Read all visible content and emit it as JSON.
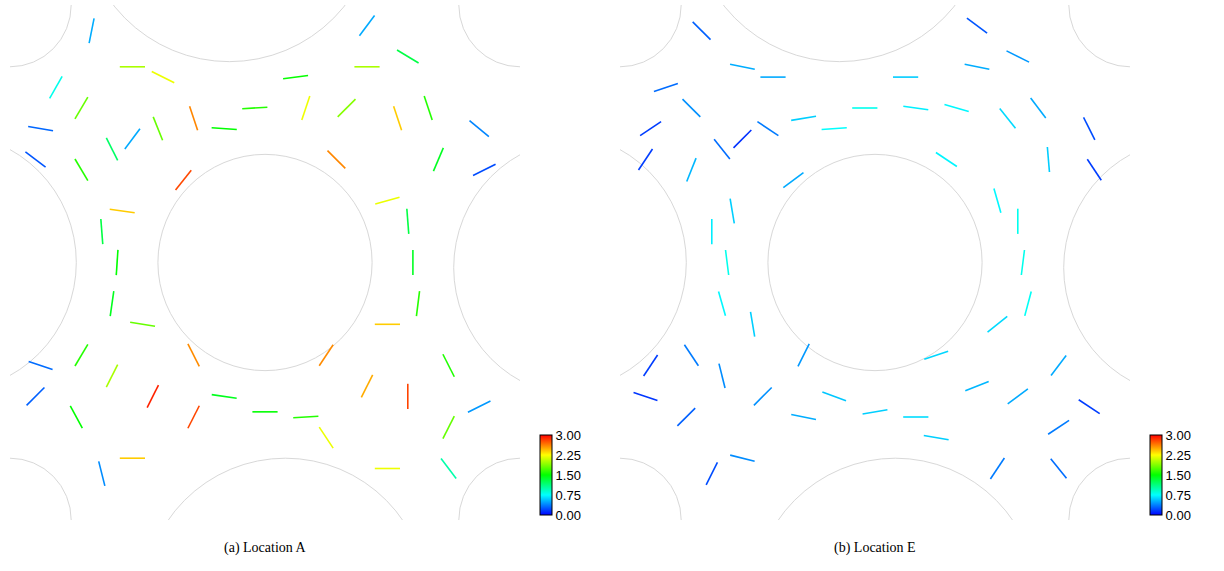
{
  "chart_data": [
    {
      "type": "vector_field",
      "title": "(a) Location A",
      "x": [
        0.24,
        0.14,
        0.14,
        0.22,
        0.34,
        0.36,
        0.3,
        0.24,
        0.2,
        0.29,
        0.06,
        0.05,
        0.09,
        0.7,
        0.82,
        0.84,
        0.74,
        0.64,
        0.58,
        0.76,
        0.66,
        0.92,
        0.93,
        0.78,
        0.56,
        0.48,
        0.42,
        0.21,
        0.2,
        0.18,
        0.79,
        0.8,
        0.78,
        0.5,
        0.42,
        0.58,
        0.24,
        0.36,
        0.36,
        0.26,
        0.14,
        0.13,
        0.28,
        0.2,
        0.06,
        0.05,
        0.18,
        0.74,
        0.86,
        0.86,
        0.74,
        0.62,
        0.62,
        0.78,
        0.7,
        0.92,
        0.86,
        0.16,
        0.7
      ],
      "y": [
        0.88,
        0.8,
        0.68,
        0.6,
        0.66,
        0.78,
        0.86,
        0.74,
        0.72,
        0.76,
        0.76,
        0.7,
        0.84,
        0.88,
        0.8,
        0.7,
        0.62,
        0.7,
        0.8,
        0.78,
        0.8,
        0.76,
        0.68,
        0.9,
        0.86,
        0.8,
        0.76,
        0.5,
        0.42,
        0.56,
        0.5,
        0.42,
        0.58,
        0.21,
        0.24,
        0.2,
        0.12,
        0.2,
        0.32,
        0.38,
        0.32,
        0.2,
        0.24,
        0.28,
        0.3,
        0.24,
        0.09,
        0.1,
        0.18,
        0.3,
        0.38,
        0.32,
        0.16,
        0.24,
        0.26,
        0.22,
        0.1,
        0.95,
        0.96
      ],
      "u": [
        -2.0,
        -0.92,
        0.82,
        2.38,
        1.74,
        -0.83,
        -1.96,
        0.3,
        0.54,
        -0.67,
        -0.3,
        0.2,
        -0.4,
        2.0,
        0.51,
        -0.55,
        -2.11,
        -1.84,
        0.7,
        0.76,
        1.34,
        0.3,
        0.2,
        1.11,
        1.5,
        1.6,
        1.5,
        0.1,
        0.2,
        -0.1,
        0.0,
        -0.2,
        0.1,
        -1.5,
        -1.4,
        -1.6,
        -2.4,
        -1.26,
        1.17,
        1.78,
        0.82,
        -0.72,
        -1.3,
        0.9,
        -0.3,
        0.2,
        0.1,
        2.2,
        0.81,
        -0.72,
        -2.4,
        -1.43,
        1.21,
        0.0,
        -1.12,
        0.4,
        0.6,
        0.1,
        0.3
      ],
      "v": [
        0.0,
        -1.55,
        -1.38,
        -0.34,
        2.18,
        2.47,
        0.99,
        0.4,
        -1.07,
        1.67,
        0.05,
        -0.15,
        -0.7,
        0.0,
        -1.52,
        -1.29,
        -0.59,
        1.84,
        2.09,
        -2.28,
        1.34,
        -0.25,
        0.1,
        -0.67,
        0.2,
        0.1,
        -0.1,
        1.5,
        1.4,
        1.3,
        -1.4,
        -1.6,
        -1.3,
        0.0,
        0.2,
        -0.1,
        0.0,
        -2.49,
        -2.31,
        -0.29,
        1.38,
        1.32,
        -2.59,
        1.78,
        0.1,
        0.2,
        -0.4,
        0.0,
        1.6,
        1.42,
        0.0,
        -2.16,
        -1.83,
        2.8,
        -2.23,
        0.2,
        -0.8,
        0.5,
        0.4
      ],
      "xlim": [
        0,
        1
      ],
      "ylim": [
        0,
        1
      ],
      "tick_labels": false,
      "colorbar": {
        "range": [
          0,
          3
        ],
        "ticks": [
          {
            "value": 0,
            "label": "0.00"
          },
          {
            "value": 0.75,
            "label": "0.75"
          },
          {
            "value": 1.5,
            "label": "1.50"
          },
          {
            "value": 2.25,
            "label": "2.25"
          },
          {
            "value": 3,
            "label": "3.00"
          }
        ]
      }
    },
    {
      "type": "vector_field",
      "title": "(b) Location E",
      "x": [
        0.24,
        0.14,
        0.14,
        0.22,
        0.34,
        0.36,
        0.3,
        0.24,
        0.2,
        0.29,
        0.06,
        0.05,
        0.09,
        0.7,
        0.82,
        0.84,
        0.74,
        0.64,
        0.58,
        0.76,
        0.66,
        0.92,
        0.93,
        0.78,
        0.56,
        0.48,
        0.42,
        0.21,
        0.2,
        0.18,
        0.79,
        0.8,
        0.78,
        0.5,
        0.42,
        0.58,
        0.24,
        0.36,
        0.36,
        0.26,
        0.14,
        0.13,
        0.28,
        0.2,
        0.06,
        0.05,
        0.18,
        0.74,
        0.86,
        0.86,
        0.74,
        0.62,
        0.62,
        0.78,
        0.7,
        0.92,
        0.86,
        0.16,
        0.7
      ],
      "y": [
        0.88,
        0.8,
        0.68,
        0.6,
        0.66,
        0.78,
        0.86,
        0.74,
        0.72,
        0.76,
        0.76,
        0.7,
        0.84,
        0.88,
        0.8,
        0.7,
        0.62,
        0.7,
        0.8,
        0.78,
        0.8,
        0.76,
        0.68,
        0.9,
        0.86,
        0.8,
        0.76,
        0.5,
        0.42,
        0.56,
        0.5,
        0.42,
        0.58,
        0.21,
        0.24,
        0.2,
        0.12,
        0.2,
        0.32,
        0.38,
        0.32,
        0.2,
        0.24,
        0.28,
        0.3,
        0.24,
        0.09,
        0.1,
        0.18,
        0.3,
        0.38,
        0.32,
        0.16,
        0.24,
        0.26,
        0.22,
        0.1,
        0.95,
        0.96
      ],
      "u": [
        0.5,
        0.3,
        -0.2,
        0.1,
        0.4,
        0.6,
        0.5,
        0.1,
        -0.2,
        0.3,
        0.15,
        -0.1,
        0.3,
        0.5,
        0.3,
        0.05,
        0.2,
        0.6,
        0.7,
        0.4,
        0.7,
        -0.1,
        0.1,
        0.4,
        0.6,
        0.8,
        0.75,
        0.1,
        0.2,
        0.0,
        -0.1,
        -0.2,
        0.0,
        -0.6,
        -0.55,
        -0.65,
        -0.4,
        -0.5,
        -0.2,
        0.1,
        0.2,
        -0.2,
        -0.3,
        0.1,
        0.1,
        -0.15,
        -0.1,
        -0.2,
        -0.3,
        -0.3,
        -0.5,
        -0.6,
        -0.6,
        -0.4,
        -0.5,
        0.15,
        0.2,
        0.2,
        0.2
      ],
      "v": [
        -0.1,
        -0.3,
        -0.5,
        -0.6,
        0.3,
        0.1,
        0.0,
        0.1,
        0.25,
        -0.2,
        0.1,
        -0.15,
        0.1,
        -0.1,
        -0.4,
        -0.6,
        -0.7,
        -0.4,
        -0.1,
        -0.5,
        -0.2,
        0.2,
        -0.15,
        -0.2,
        0.0,
        0.0,
        0.05,
        -0.8,
        -0.7,
        -0.7,
        -0.8,
        -0.75,
        -0.8,
        -0.1,
        0.2,
        0.0,
        0.1,
        0.1,
        -0.4,
        -0.6,
        -0.3,
        -0.2,
        -0.3,
        -0.4,
        0.15,
        0.05,
        -0.2,
        -0.3,
        -0.2,
        -0.4,
        -0.4,
        -0.2,
        0.1,
        -0.3,
        -0.2,
        -0.1,
        -0.25,
        -0.2,
        -0.15
      ],
      "xlim": [
        0,
        1
      ],
      "ylim": [
        0,
        1
      ],
      "tick_labels": false,
      "colorbar": {
        "range": [
          0,
          3
        ],
        "ticks": [
          {
            "value": 0,
            "label": "0.00"
          },
          {
            "value": 0.75,
            "label": "0.75"
          },
          {
            "value": 1.5,
            "label": "1.50"
          },
          {
            "value": 2.25,
            "label": "2.25"
          },
          {
            "value": 3,
            "label": "3.00"
          }
        ]
      }
    }
  ]
}
